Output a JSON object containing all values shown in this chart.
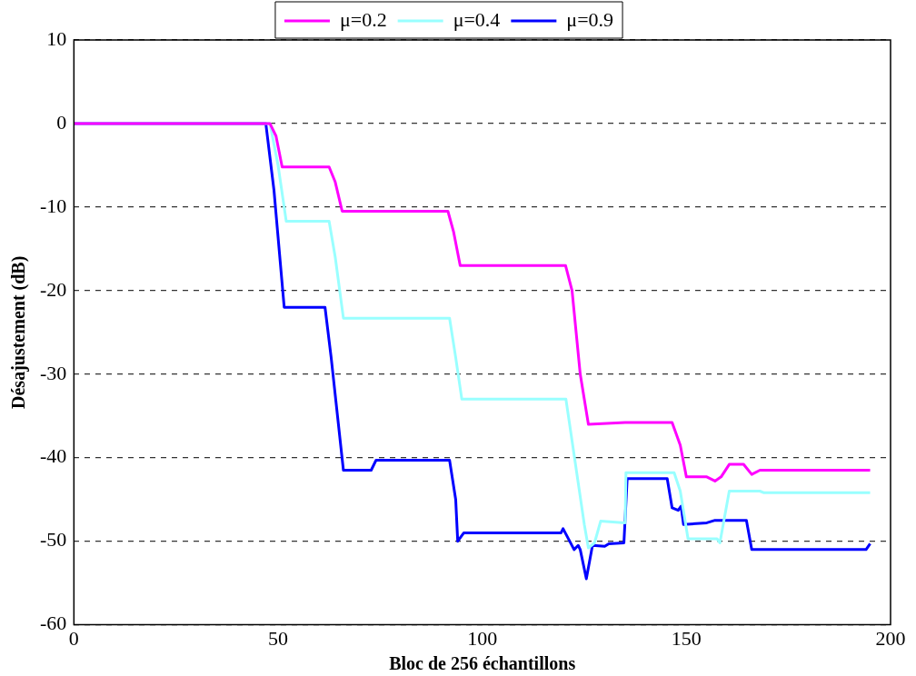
{
  "chart_data": {
    "type": "line",
    "xlabel": "Bloc de 256 échantillons",
    "ylabel": "Désajustement (dB)",
    "xlim": [
      0,
      200
    ],
    "xticks": [
      0,
      50,
      100,
      150,
      200
    ],
    "ylim": [
      -60,
      10
    ],
    "yticks": [
      -60,
      -50,
      -40,
      -30,
      -20,
      -10,
      0,
      10
    ],
    "grid": "y",
    "legend": "top",
    "marker": "none",
    "line_style": "solid",
    "series": [
      {
        "name": "μ=0.2",
        "color": "#ff00ff",
        "x": [
          0,
          48,
          49.5,
          51,
          62.5,
          64,
          65.7,
          91.6,
          93,
          94.6,
          120.4,
          122,
          124,
          126,
          135,
          146.5,
          148.5,
          150,
          155,
          157,
          158.5,
          160.5,
          164,
          166,
          168,
          195
        ],
        "values": [
          0,
          0,
          -1.5,
          -5.2,
          -5.2,
          -7,
          -10.5,
          -10.5,
          -13,
          -17,
          -17,
          -20,
          -30,
          -36,
          -35.8,
          -35.8,
          -38.5,
          -42.3,
          -42.3,
          -42.8,
          -42.3,
          -40.8,
          -40.8,
          -42,
          -41.5,
          -41.5
        ]
      },
      {
        "name": "μ=0.4",
        "color": "#99ffff",
        "x": [
          0,
          48,
          50,
          52,
          62.5,
          64,
          66,
          92,
          93.5,
          95,
          120.5,
          122,
          125,
          126,
          127.5,
          129,
          135,
          135.2,
          147,
          148.5,
          150.4,
          157.5,
          158.2,
          160.5,
          168,
          169,
          195
        ],
        "values": [
          0,
          0,
          -5,
          -11.7,
          -11.7,
          -16,
          -23.3,
          -23.3,
          -28,
          -33,
          -33,
          -38,
          -48,
          -50.8,
          -50.2,
          -47.6,
          -47.8,
          -41.8,
          -41.8,
          -44,
          -49.7,
          -49.7,
          -50.2,
          -44,
          -44,
          -44.2,
          -44.2
        ]
      },
      {
        "name": "μ=0.9",
        "color": "#0000ff",
        "x": [
          0,
          47,
          49,
          51.5,
          61.5,
          63,
          66,
          72.8,
          74,
          92,
          93.5,
          94,
          95.5,
          119.3,
          119.8,
          122.5,
          123.5,
          124,
          125.5,
          127,
          130,
          131,
          134.7,
          135.5,
          145.3,
          146.5,
          148,
          148.7,
          149.3,
          155,
          157,
          164.7,
          166,
          194,
          195
        ],
        "values": [
          0,
          0,
          -8,
          -22,
          -22,
          -28,
          -41.5,
          -41.5,
          -40.3,
          -40.3,
          -45,
          -50,
          -49,
          -49,
          -48.5,
          -51,
          -50.5,
          -51,
          -54.5,
          -50.5,
          -50.6,
          -50.3,
          -50.2,
          -42.5,
          -42.5,
          -46,
          -46.3,
          -45.8,
          -48,
          -47.8,
          -47.5,
          -47.5,
          -51,
          -51,
          -50.3
        ]
      }
    ]
  }
}
